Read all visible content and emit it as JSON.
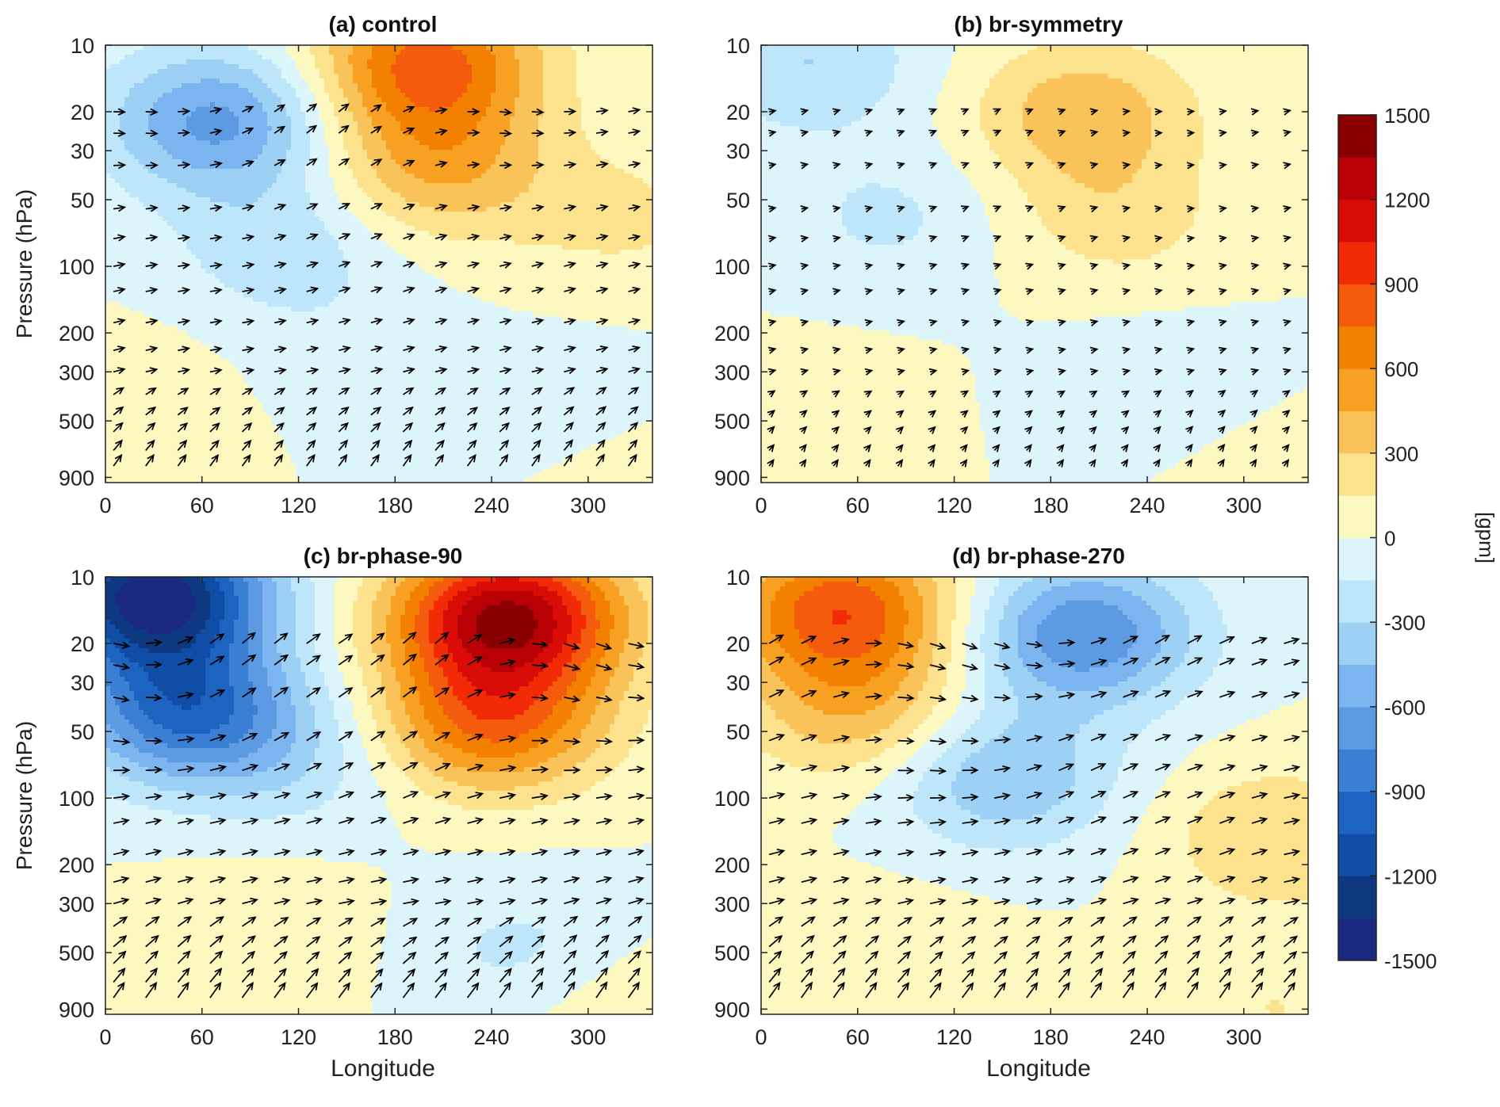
{
  "figure": {
    "panels": [
      {
        "title": "(a) control"
      },
      {
        "title": "(b) br-symmetry"
      },
      {
        "title": "(c) br-phase-90"
      },
      {
        "title": "(d) br-phase-270"
      }
    ],
    "ylabel": "Pressure (hPa)",
    "xlabel": "Longitude",
    "colorbar_label": "[gpm]"
  },
  "chart_data": {
    "type": "contourf with wind vectors",
    "panels": [
      {
        "title": "(a) control",
        "centers": [
          {
            "lon": 70,
            "p": 22,
            "value": -650
          },
          {
            "lon": 110,
            "p": 80,
            "value": -250
          },
          {
            "lon": 200,
            "p": 12,
            "value": 800
          },
          {
            "lon": 205,
            "p": 35,
            "value": 450
          },
          {
            "lon": 150,
            "p": 250,
            "value": -80
          },
          {
            "lon": 280,
            "p": 500,
            "value": -150
          },
          {
            "lon": 20,
            "p": 400,
            "value": 100
          },
          {
            "lon": 320,
            "p": 60,
            "value": 180
          },
          {
            "lon": 320,
            "p": 900,
            "value": 150
          }
        ],
        "wind_scale": 1.0
      },
      {
        "title": "(b) br-symmetry",
        "centers": [
          {
            "lon": 30,
            "p": 12,
            "value": -300
          },
          {
            "lon": 80,
            "p": 60,
            "value": -180
          },
          {
            "lon": 200,
            "p": 20,
            "value": 400
          },
          {
            "lon": 220,
            "p": 60,
            "value": 220
          },
          {
            "lon": 250,
            "p": 400,
            "value": -150
          },
          {
            "lon": 30,
            "p": 500,
            "value": 100
          },
          {
            "lon": 320,
            "p": 900,
            "value": 150
          }
        ],
        "wind_scale": 0.55
      },
      {
        "title": "(c) br-phase-90",
        "centers": [
          {
            "lon": 30,
            "p": 12,
            "value": -1450
          },
          {
            "lon": 50,
            "p": 40,
            "value": -900
          },
          {
            "lon": 250,
            "p": 15,
            "value": 1350
          },
          {
            "lon": 240,
            "p": 45,
            "value": 750
          },
          {
            "lon": 120,
            "p": 70,
            "value": -200
          },
          {
            "lon": 260,
            "p": 500,
            "value": -200
          },
          {
            "lon": 100,
            "p": 400,
            "value": 120
          },
          {
            "lon": 320,
            "p": 900,
            "value": 150
          }
        ],
        "wind_scale": 1.35
      },
      {
        "title": "(d) br-phase-270",
        "centers": [
          {
            "lon": 50,
            "p": 14,
            "value": 850
          },
          {
            "lon": 60,
            "p": 40,
            "value": 400
          },
          {
            "lon": 200,
            "p": 18,
            "value": -750
          },
          {
            "lon": 150,
            "p": 80,
            "value": -450
          },
          {
            "lon": 320,
            "p": 150,
            "value": 300
          },
          {
            "lon": 80,
            "p": 500,
            "value": 100
          },
          {
            "lon": 320,
            "p": 900,
            "value": 150
          }
        ],
        "wind_scale": 1.35
      }
    ],
    "x_range": [
      0,
      340
    ],
    "x_ticks": [
      0,
      60,
      120,
      180,
      240,
      300
    ],
    "y_log": true,
    "y_range": [
      10,
      950
    ],
    "y_ticks": [
      10,
      20,
      30,
      50,
      100,
      200,
      300,
      500,
      900
    ],
    "colorbar": {
      "levels": [
        -1500,
        -1350,
        -1200,
        -1050,
        -900,
        -750,
        -600,
        -450,
        -300,
        -150,
        0,
        150,
        300,
        450,
        600,
        750,
        900,
        1050,
        1200,
        1350,
        1500
      ],
      "colors": [
        "#1b2a80",
        "#0e3880",
        "#0f4da6",
        "#1d64c0",
        "#3a7fd4",
        "#5c9ae2",
        "#7bb4ee",
        "#9dd0f5",
        "#bde6fa",
        "#dbf5fb",
        "#fcf8bf",
        "#fce28c",
        "#f9c35a",
        "#f8a022",
        "#f48000",
        "#f45b0d",
        "#f22a05",
        "#d90c07",
        "#b90005",
        "#8a0002"
      ],
      "tick_labels": [
        -1500,
        -1200,
        -900,
        -600,
        -300,
        0,
        300,
        600,
        900,
        1200,
        1500
      ]
    }
  }
}
